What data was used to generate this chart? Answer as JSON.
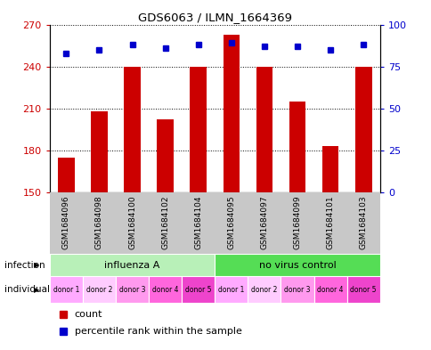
{
  "title": "GDS6063 / ILMN_1664369",
  "samples": [
    "GSM1684096",
    "GSM1684098",
    "GSM1684100",
    "GSM1684102",
    "GSM1684104",
    "GSM1684095",
    "GSM1684097",
    "GSM1684099",
    "GSM1684101",
    "GSM1684103"
  ],
  "bar_values": [
    175,
    208,
    240,
    202,
    240,
    263,
    240,
    215,
    183,
    240
  ],
  "percentile_values": [
    83,
    85,
    88,
    86,
    88,
    89,
    87,
    87,
    85,
    88
  ],
  "ylim_left": [
    150,
    270
  ],
  "ylim_right": [
    0,
    100
  ],
  "yticks_left": [
    150,
    180,
    210,
    240,
    270
  ],
  "yticks_right": [
    0,
    25,
    50,
    75,
    100
  ],
  "infection_labels": [
    "influenza A",
    "no virus control"
  ],
  "infection_colors": [
    "#B8F0B8",
    "#55DD55"
  ],
  "donors": [
    "donor 1",
    "donor 2",
    "donor 3",
    "donor 4",
    "donor 5",
    "donor 1",
    "donor 2",
    "donor 3",
    "donor 4",
    "donor 5"
  ],
  "donor_colors": [
    "#FFAAFF",
    "#FFCCFF",
    "#FF99EE",
    "#FF66DD",
    "#EE44CC",
    "#FFAAFF",
    "#FFCCFF",
    "#FF99EE",
    "#FF66DD",
    "#EE44CC"
  ],
  "bar_color": "#CC0000",
  "dot_color": "#0000CC",
  "label_infection": "infection",
  "label_individual": "individual",
  "legend_count": "count",
  "legend_percentile": "percentile rank within the sample",
  "tick_color_left": "#CC0000",
  "tick_color_right": "#0000CC",
  "bar_width": 0.5,
  "grey_bg": "#C8C8C8"
}
